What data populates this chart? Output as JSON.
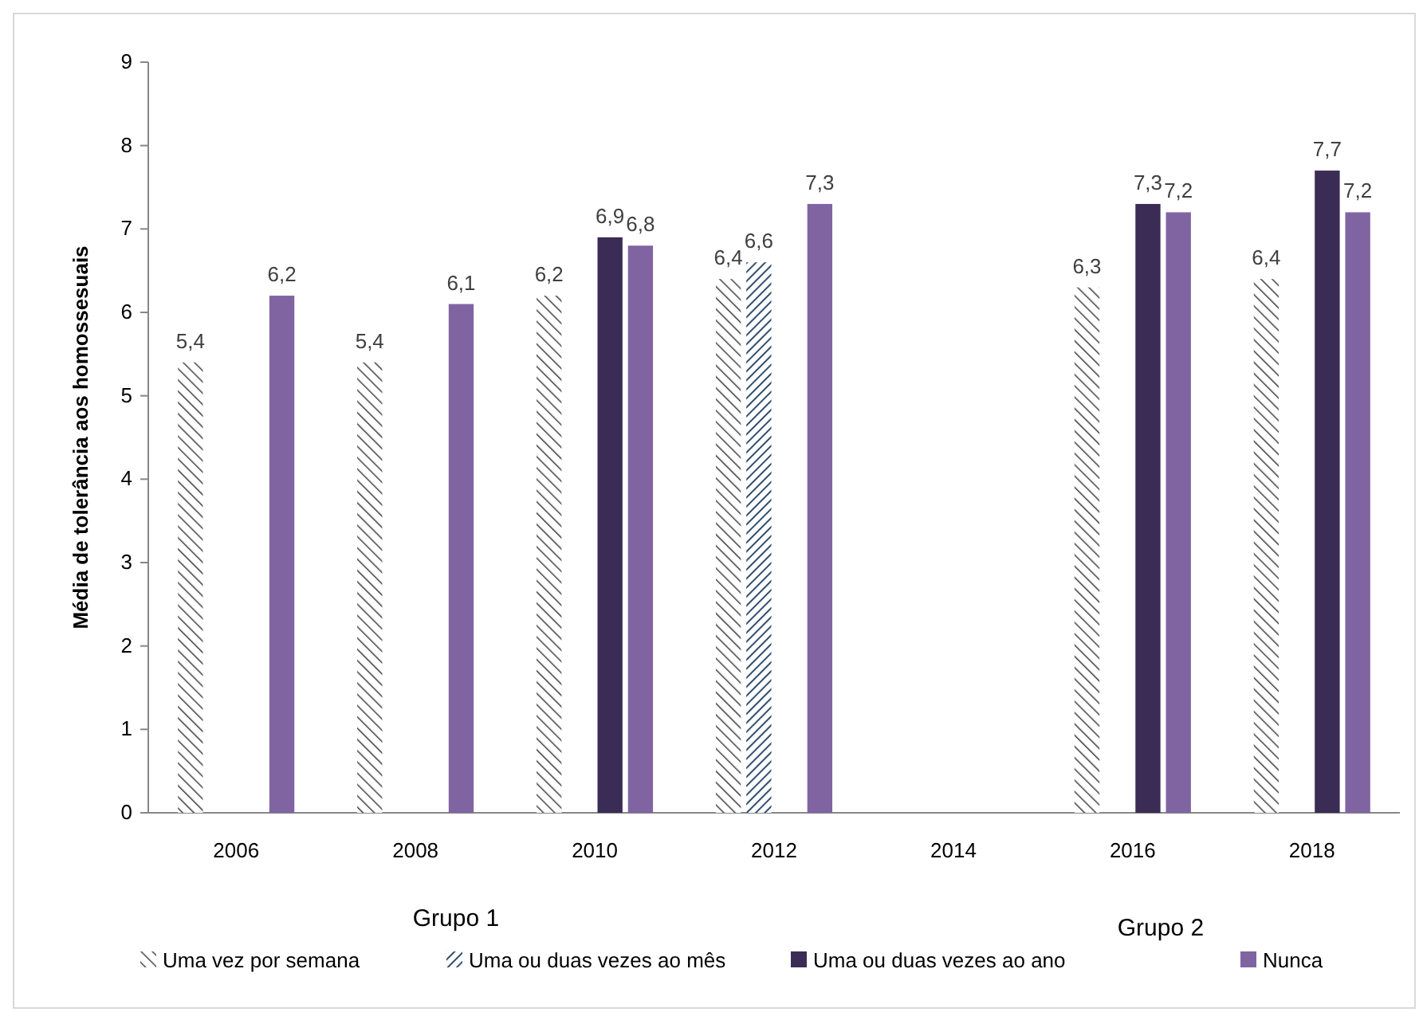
{
  "chart_data": {
    "type": "bar",
    "ylabel": "Média de tolerância aos homossesuais",
    "categories": [
      "2006",
      "2008",
      "2010",
      "2012",
      "2014",
      "2016",
      "2018"
    ],
    "series": [
      {
        "name": "Uma vez por semana",
        "color": "#404040",
        "values": [
          5.4,
          5.4,
          6.2,
          6.4,
          null,
          6.3,
          6.4
        ],
        "value_labels": [
          "5,4",
          "5,4",
          "6,2",
          "6,4",
          null,
          "6,3",
          "6,4"
        ]
      },
      {
        "name": "Uma ou duas vezes ao mês",
        "color": "#2f4f6f",
        "values": [
          null,
          null,
          null,
          6.6,
          null,
          null,
          null
        ],
        "value_labels": [
          null,
          null,
          null,
          "6,6",
          null,
          null,
          null
        ]
      },
      {
        "name": "Uma ou duas vezes ao ano",
        "color": "#3b2c55",
        "values": [
          null,
          null,
          6.9,
          null,
          null,
          7.3,
          7.7
        ],
        "value_labels": [
          null,
          null,
          "6,9",
          null,
          null,
          "7,3",
          "7,7"
        ]
      },
      {
        "name": "Nunca",
        "color": "#8064a2",
        "values": [
          6.2,
          6.1,
          6.8,
          7.3,
          null,
          7.2,
          7.2
        ],
        "value_labels": [
          "6,2",
          "6,1",
          "6,8",
          "7,3",
          null,
          "7,2",
          "7,2"
        ]
      }
    ],
    "ylim": [
      0,
      9
    ],
    "yticks": [
      0,
      1,
      2,
      3,
      4,
      5,
      6,
      7,
      8,
      9
    ],
    "grid": false,
    "legend": "bottom",
    "annotations": [
      "Grupo 1",
      "Grupo 2"
    ]
  }
}
